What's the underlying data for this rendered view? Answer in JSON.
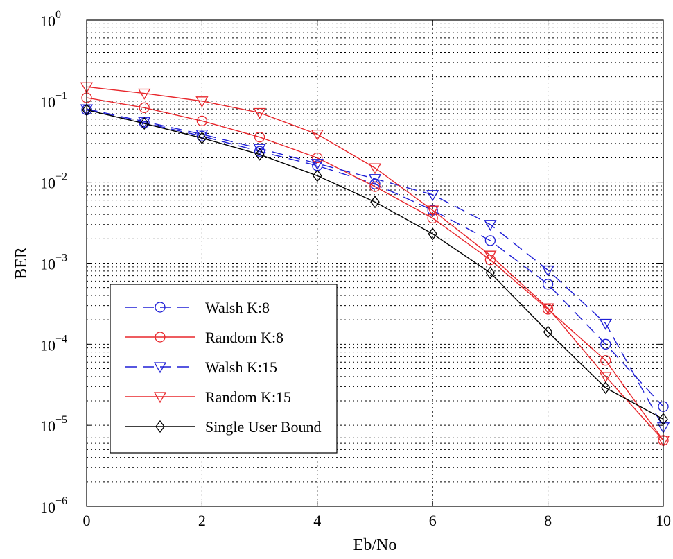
{
  "chart_data": {
    "type": "line",
    "xlabel": "Eb/No",
    "ylabel": "BER",
    "yscale": "log",
    "xlim": [
      0,
      10
    ],
    "ylim": [
      1e-06,
      1
    ],
    "grid": true,
    "legend_position": "bottom-left",
    "x_ticks": [
      0,
      2,
      4,
      6,
      8,
      10
    ],
    "x_tick_labels": [
      "0",
      "2",
      "4",
      "6",
      "8",
      "10"
    ],
    "y_ticks": [
      {
        "value": 1,
        "base": "10",
        "exp": "0"
      },
      {
        "value": 0.1,
        "base": "10",
        "exp": "−1"
      },
      {
        "value": 0.01,
        "base": "10",
        "exp": "−2"
      },
      {
        "value": 0.001,
        "base": "10",
        "exp": "−3"
      },
      {
        "value": 0.0001,
        "base": "10",
        "exp": "−4"
      },
      {
        "value": 1e-05,
        "base": "10",
        "exp": "−5"
      },
      {
        "value": 1e-06,
        "base": "10",
        "exp": "−6"
      }
    ],
    "x": [
      0,
      1,
      2,
      3,
      4,
      5,
      6,
      7,
      8,
      9,
      10
    ],
    "series": [
      {
        "name": "Walsh K:8",
        "color": "#1f1fd6",
        "dashed": true,
        "marker": "circle",
        "values": [
          0.078,
          0.054,
          0.037,
          0.024,
          0.016,
          0.0095,
          0.0045,
          0.0019,
          0.00055,
          0.0001,
          1.7e-05
        ]
      },
      {
        "name": "Random  K:8",
        "color": "#e8262b",
        "dashed": false,
        "marker": "circle",
        "values": [
          0.11,
          0.083,
          0.057,
          0.036,
          0.02,
          0.0088,
          0.0036,
          0.0011,
          0.00027,
          6.3e-05,
          6.5e-06
        ]
      },
      {
        "name": "Walsh  K:15",
        "color": "#1f1fd6",
        "dashed": true,
        "marker": "triangle-down",
        "values": [
          0.08,
          0.056,
          0.039,
          0.026,
          0.017,
          0.011,
          0.007,
          0.003,
          0.00082,
          0.00018,
          9.5e-06
        ]
      },
      {
        "name": "Random K:15",
        "color": "#e8262b",
        "dashed": false,
        "marker": "triangle-down",
        "values": [
          0.15,
          0.125,
          0.1,
          0.072,
          0.039,
          0.015,
          0.0045,
          0.00125,
          0.00028,
          4e-05,
          6.5e-06
        ]
      },
      {
        "name": "Single User Bound",
        "color": "#000000",
        "dashed": false,
        "marker": "diamond",
        "values": [
          0.078,
          0.053,
          0.035,
          0.022,
          0.012,
          0.0057,
          0.0023,
          0.00076,
          0.000142,
          2.9e-05,
          1.19e-05
        ]
      }
    ]
  }
}
